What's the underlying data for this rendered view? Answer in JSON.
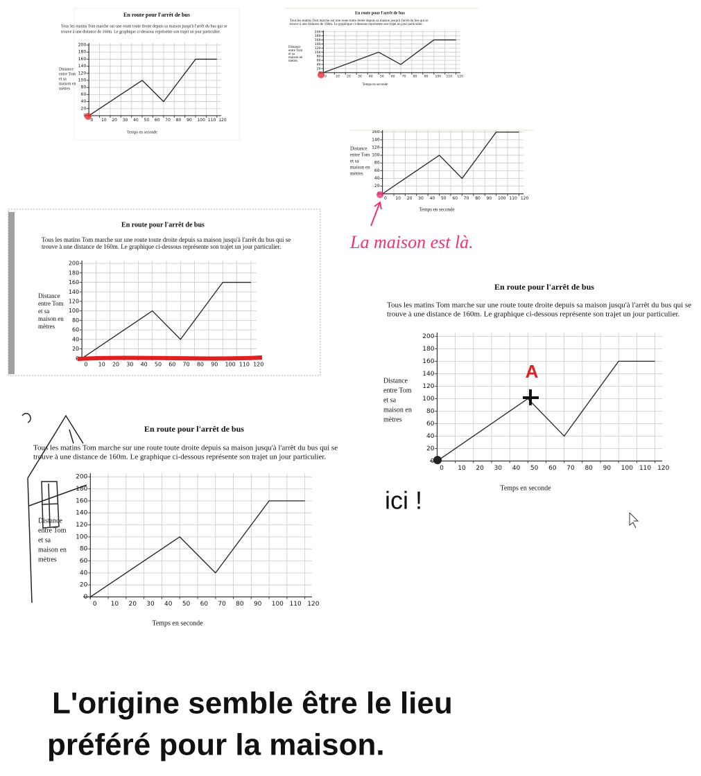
{
  "chart_data": {
    "type": "line",
    "title": "En route pour l'arrêt de bus",
    "description": [
      "Tous les matins Tom marche sur une route toute droite depuis sa maison jusqu'à l'arrêt du bus qui se",
      "trouve à une distance de 160m. Le graphique ci-dessous représente son trajet un jour particulier."
    ],
    "ylabel": [
      "Distance",
      "entre Tom",
      "et sa",
      "maison en",
      "mètres"
    ],
    "xlabel": "Temps en seconde",
    "x": [
      0,
      50,
      70,
      100,
      120
    ],
    "values": [
      0,
      100,
      40,
      160,
      160
    ],
    "color": "#222",
    "xlim": [
      -4,
      124
    ],
    "ylim": [
      -4,
      206
    ],
    "xticks": [
      0,
      10,
      20,
      30,
      40,
      50,
      60,
      70,
      80,
      90,
      100,
      110,
      120
    ],
    "yticks": [
      0,
      20,
      40,
      60,
      80,
      100,
      120,
      140,
      160,
      180,
      200
    ],
    "grid": true
  },
  "annotations": {
    "house_note": "La maison est là.",
    "point_label": "A",
    "here_note": "ici !",
    "conclusion": [
      "L'origine semble être le lieu",
      "préféré pour la maison."
    ]
  }
}
